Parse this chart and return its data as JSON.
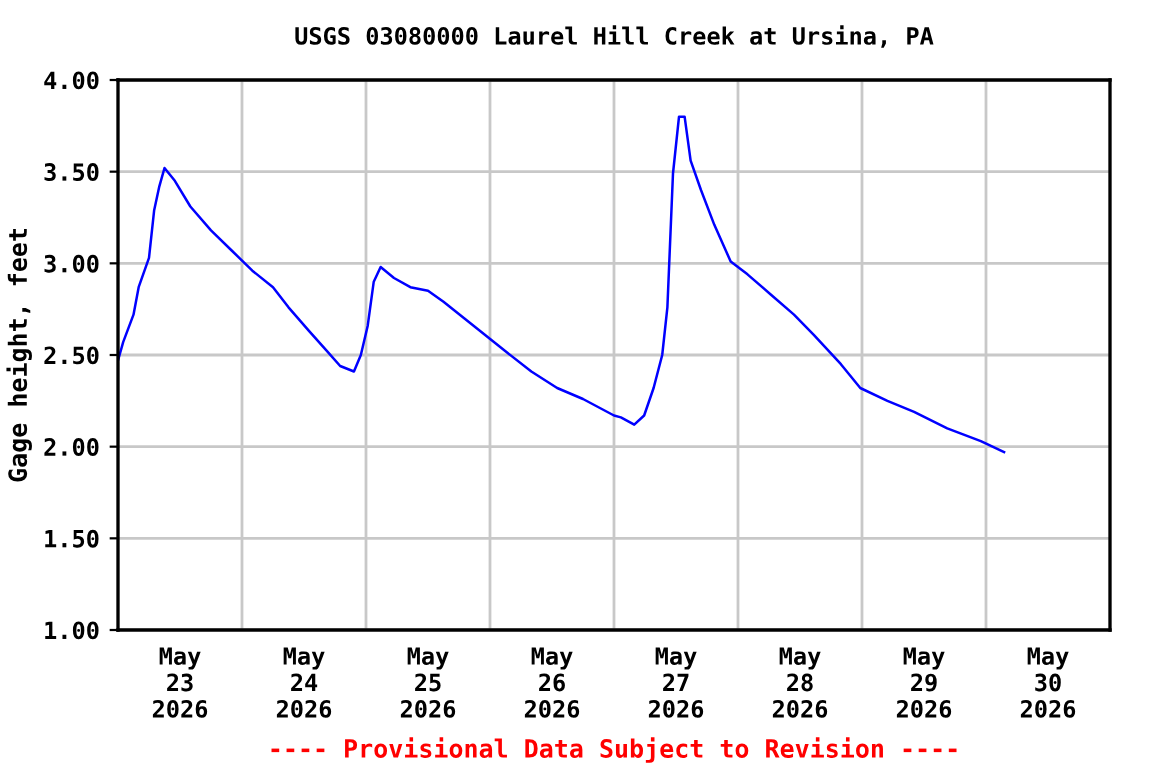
{
  "chart_data": {
    "type": "line",
    "title": "USGS 03080000 Laurel Hill Creek at Ursina, PA",
    "ylabel": "Gage height, feet",
    "annotations": [
      "---- Provisional Data Subject to Revision ----"
    ],
    "x": [
      "2026-05-23T00:00",
      "2026-05-23T01:00",
      "2026-05-23T03:00",
      "2026-05-23T04:00",
      "2026-05-23T06:00",
      "2026-05-23T07:00",
      "2026-05-23T08:00",
      "2026-05-23T09:00",
      "2026-05-23T11:00",
      "2026-05-23T14:00",
      "2026-05-23T18:00",
      "2026-05-23T22:00",
      "2026-05-24T02:00",
      "2026-05-24T06:00",
      "2026-05-24T09:00",
      "2026-05-24T13:00",
      "2026-05-24T16:30",
      "2026-05-24T19:00",
      "2026-05-24T21:40",
      "2026-05-24T23:00",
      "2026-05-25T00:20",
      "2026-05-25T01:30",
      "2026-05-25T02:50",
      "2026-05-25T05:25",
      "2026-05-25T08:35",
      "2026-05-25T12:00",
      "2026-05-25T15:00",
      "2026-05-25T19:00",
      "2026-05-25T23:00",
      "2026-05-26T03:00",
      "2026-05-26T08:00",
      "2026-05-26T13:00",
      "2026-05-26T18:00",
      "2026-05-27T00:00",
      "2026-05-27T01:20",
      "2026-05-27T03:55",
      "2026-05-27T05:50",
      "2026-05-27T07:40",
      "2026-05-27T09:20",
      "2026-05-27T10:20",
      "2026-05-27T11:25",
      "2026-05-27T12:35",
      "2026-05-27T13:40",
      "2026-05-27T14:50",
      "2026-05-27T16:50",
      "2026-05-27T19:25",
      "2026-05-27T22:35",
      "2026-05-28T01:50",
      "2026-05-28T06:20",
      "2026-05-28T10:50",
      "2026-05-28T14:40",
      "2026-05-28T19:55",
      "2026-05-28T23:40",
      "2026-05-29T04:55",
      "2026-05-29T10:05",
      "2026-05-29T16:30",
      "2026-05-29T23:00",
      "2026-05-30T03:30"
    ],
    "series": [
      {
        "color": "#0000ff",
        "values": [
          2.47,
          2.57,
          2.72,
          2.87,
          3.03,
          3.29,
          3.42,
          3.52,
          3.45,
          3.31,
          3.18,
          3.07,
          2.96,
          2.87,
          2.76,
          2.63,
          2.52,
          2.44,
          2.41,
          2.5,
          2.66,
          2.9,
          2.98,
          2.92,
          2.87,
          2.85,
          2.79,
          2.7,
          2.61,
          2.52,
          2.41,
          2.32,
          2.26,
          2.17,
          2.16,
          2.12,
          2.17,
          2.32,
          2.5,
          2.76,
          3.49,
          3.8,
          3.8,
          3.56,
          3.4,
          3.21,
          3.01,
          2.94,
          2.83,
          2.72,
          2.61,
          2.45,
          2.32,
          2.25,
          2.19,
          2.1,
          2.03,
          1.97
        ]
      }
    ],
    "xlim": [
      "2026-05-23T00:00",
      "2026-05-31T00:00"
    ],
    "xticks": [
      {
        "value": "2026-05-23T12:00",
        "label": "May\n23\n2026"
      },
      {
        "value": "2026-05-24T00:00",
        "label": null
      },
      {
        "value": "2026-05-24T12:00",
        "label": "May\n24\n2026"
      },
      {
        "value": "2026-05-25T00:00",
        "label": null
      },
      {
        "value": "2026-05-25T12:00",
        "label": "May\n25\n2026"
      },
      {
        "value": "2026-05-26T00:00",
        "label": null
      },
      {
        "value": "2026-05-26T12:00",
        "label": "May\n26\n2026"
      },
      {
        "value": "2026-05-27T00:00",
        "label": null
      },
      {
        "value": "2026-05-27T12:00",
        "label": "May\n27\n2026"
      },
      {
        "value": "2026-05-28T00:00",
        "label": null
      },
      {
        "value": "2026-05-28T12:00",
        "label": "May\n28\n2026"
      },
      {
        "value": "2026-05-29T00:00",
        "label": null
      },
      {
        "value": "2026-05-29T12:00",
        "label": "May\n29\n2026"
      },
      {
        "value": "2026-05-30T00:00",
        "label": null
      },
      {
        "value": "2026-05-30T12:00",
        "label": "May\n30\n2026"
      }
    ],
    "ylim": [
      1.0,
      4.0
    ],
    "yticks": [
      {
        "value": 1.0,
        "label": "1.00"
      },
      {
        "value": 1.5,
        "label": "1.50"
      },
      {
        "value": 2.0,
        "label": "2.00"
      },
      {
        "value": 2.5,
        "label": "2.50"
      },
      {
        "value": 3.0,
        "label": "3.00"
      },
      {
        "value": 3.5,
        "label": "3.50"
      },
      {
        "value": 4.0,
        "label": "4.00"
      }
    ],
    "grid": true
  }
}
